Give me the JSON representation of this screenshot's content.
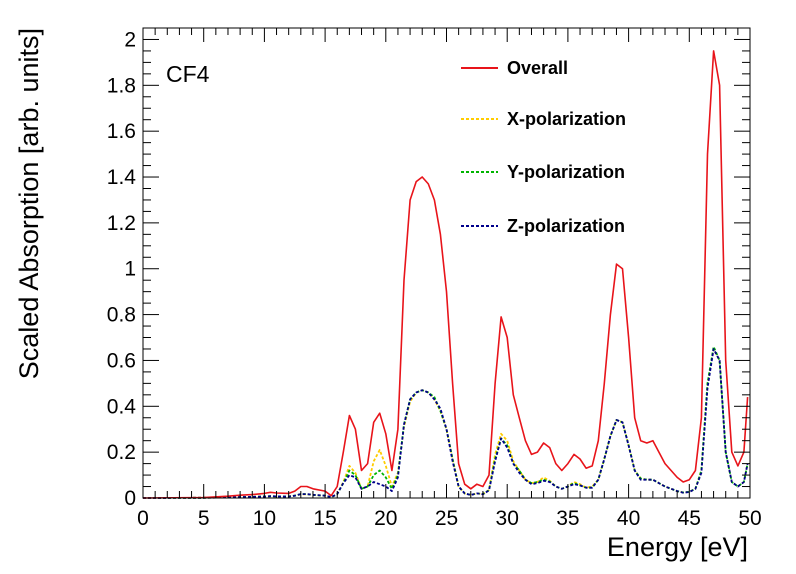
{
  "chart_data": {
    "type": "line",
    "title": "",
    "annotation": "CF4",
    "xlabel": "Energy [eV]",
    "ylabel": "Scaled Absorption [arb. units]",
    "xlim": [
      0,
      50
    ],
    "ylim": [
      0,
      2.05
    ],
    "xticks": [
      0,
      5,
      10,
      15,
      20,
      25,
      30,
      35,
      40,
      45,
      50
    ],
    "xtick_labels": [
      "0",
      "5",
      "10",
      "15",
      "20",
      "25",
      "30",
      "35",
      "40",
      "45",
      "50"
    ],
    "yticks": [
      0,
      0.2,
      0.4,
      0.6,
      0.8,
      1,
      1.2,
      1.4,
      1.6,
      1.8,
      2
    ],
    "ytick_labels": [
      "0",
      "0.2",
      "0.4",
      "0.6",
      "0.8",
      "1",
      "1.2",
      "1.4",
      "1.6",
      "1.8",
      "2"
    ],
    "grid": false,
    "legend_position": "top-center",
    "series": [
      {
        "name": "Overall",
        "color": "#e8141a",
        "dashed": false,
        "x": [
          0,
          5,
          7,
          8,
          9,
          10,
          10.5,
          11,
          12,
          12.5,
          13,
          13.5,
          14,
          15,
          15.5,
          16,
          16.5,
          17,
          17.5,
          18,
          18.5,
          19,
          19.5,
          20,
          20.5,
          21,
          21.5,
          22,
          22.5,
          23,
          23.5,
          24,
          24.5,
          25,
          25.5,
          26,
          26.5,
          27,
          27.5,
          28,
          28.5,
          29,
          29.5,
          30,
          30.5,
          31,
          31.5,
          32,
          32.5,
          33,
          33.5,
          34,
          34.5,
          35,
          35.5,
          36,
          36.5,
          37,
          37.5,
          38,
          38.5,
          39,
          39.5,
          40,
          40.5,
          41,
          41.5,
          42,
          42.5,
          43,
          43.5,
          44,
          44.5,
          45,
          45.5,
          46,
          46.5,
          47,
          47.5,
          48,
          48.5,
          49,
          49.5,
          49.8
        ],
        "values": [
          0,
          0.002,
          0.008,
          0.012,
          0.015,
          0.02,
          0.025,
          0.022,
          0.02,
          0.03,
          0.05,
          0.05,
          0.04,
          0.03,
          0.01,
          0.05,
          0.2,
          0.36,
          0.3,
          0.12,
          0.15,
          0.33,
          0.37,
          0.28,
          0.12,
          0.3,
          0.95,
          1.3,
          1.38,
          1.4,
          1.37,
          1.3,
          1.15,
          0.9,
          0.5,
          0.15,
          0.06,
          0.04,
          0.06,
          0.05,
          0.1,
          0.5,
          0.79,
          0.7,
          0.45,
          0.35,
          0.25,
          0.19,
          0.2,
          0.24,
          0.22,
          0.15,
          0.12,
          0.15,
          0.19,
          0.17,
          0.13,
          0.14,
          0.25,
          0.5,
          0.8,
          1.02,
          1.0,
          0.7,
          0.35,
          0.25,
          0.24,
          0.25,
          0.2,
          0.15,
          0.12,
          0.09,
          0.07,
          0.08,
          0.12,
          0.35,
          1.5,
          1.95,
          1.8,
          0.6,
          0.2,
          0.14,
          0.2,
          0.44
        ]
      },
      {
        "name": "X-polarization",
        "color": "#ffcc00",
        "dashed": true,
        "x": [
          0,
          5,
          7,
          8,
          9,
          10,
          10.5,
          11,
          12,
          12.5,
          13,
          13.5,
          14,
          15,
          15.5,
          16,
          16.5,
          17,
          17.5,
          18,
          18.5,
          19,
          19.5,
          20,
          20.5,
          21,
          21.5,
          22,
          22.5,
          23,
          23.5,
          24,
          24.5,
          25,
          25.5,
          26,
          26.5,
          27,
          27.5,
          28,
          28.5,
          29,
          29.5,
          30,
          30.5,
          31,
          31.5,
          32,
          32.5,
          33,
          33.5,
          34,
          34.5,
          35,
          35.5,
          36,
          36.5,
          37,
          37.5,
          38,
          38.5,
          39,
          39.5,
          40,
          40.5,
          41,
          41.5,
          42,
          42.5,
          43,
          43.5,
          44,
          44.5,
          45,
          45.5,
          46,
          46.5,
          47,
          47.5,
          48,
          48.5,
          49,
          49.5,
          49.8
        ],
        "values": [
          0,
          0.001,
          0.003,
          0.004,
          0.005,
          0.007,
          0.008,
          0.007,
          0.007,
          0.01,
          0.016,
          0.016,
          0.013,
          0.01,
          0.003,
          0.016,
          0.07,
          0.14,
          0.11,
          0.04,
          0.05,
          0.16,
          0.21,
          0.14,
          0.05,
          0.11,
          0.31,
          0.42,
          0.46,
          0.47,
          0.46,
          0.43,
          0.38,
          0.3,
          0.17,
          0.05,
          0.02,
          0.013,
          0.02,
          0.017,
          0.035,
          0.19,
          0.28,
          0.25,
          0.16,
          0.12,
          0.08,
          0.065,
          0.07,
          0.09,
          0.075,
          0.05,
          0.04,
          0.05,
          0.07,
          0.06,
          0.045,
          0.05,
          0.08,
          0.17,
          0.27,
          0.34,
          0.33,
          0.23,
          0.12,
          0.085,
          0.08,
          0.08,
          0.065,
          0.05,
          0.04,
          0.03,
          0.024,
          0.027,
          0.04,
          0.12,
          0.5,
          0.65,
          0.6,
          0.2,
          0.07,
          0.05,
          0.07,
          0.15
        ]
      },
      {
        "name": "Y-polarization",
        "color": "#00b400",
        "dashed": true,
        "x": [
          0,
          5,
          7,
          8,
          9,
          10,
          10.5,
          11,
          12,
          12.5,
          13,
          13.5,
          14,
          15,
          15.5,
          16,
          16.5,
          17,
          17.5,
          18,
          18.5,
          19,
          19.5,
          20,
          20.5,
          21,
          21.5,
          22,
          22.5,
          23,
          23.5,
          24,
          24.5,
          25,
          25.5,
          26,
          26.5,
          27,
          27.5,
          28,
          28.5,
          29,
          29.5,
          30,
          30.5,
          31,
          31.5,
          32,
          32.5,
          33,
          33.5,
          34,
          34.5,
          35,
          35.5,
          36,
          36.5,
          37,
          37.5,
          38,
          38.5,
          39,
          39.5,
          40,
          40.5,
          41,
          41.5,
          42,
          42.5,
          43,
          43.5,
          44,
          44.5,
          45,
          45.5,
          46,
          46.5,
          47,
          47.5,
          48,
          48.5,
          49,
          49.5,
          49.8
        ],
        "values": [
          0,
          0.001,
          0.003,
          0.004,
          0.005,
          0.007,
          0.008,
          0.007,
          0.007,
          0.01,
          0.017,
          0.017,
          0.013,
          0.01,
          0.003,
          0.017,
          0.065,
          0.12,
          0.1,
          0.04,
          0.05,
          0.1,
          0.12,
          0.09,
          0.04,
          0.1,
          0.32,
          0.43,
          0.46,
          0.47,
          0.46,
          0.44,
          0.38,
          0.3,
          0.17,
          0.05,
          0.02,
          0.013,
          0.02,
          0.017,
          0.034,
          0.17,
          0.26,
          0.23,
          0.15,
          0.12,
          0.08,
          0.065,
          0.07,
          0.08,
          0.072,
          0.05,
          0.04,
          0.05,
          0.065,
          0.055,
          0.045,
          0.045,
          0.08,
          0.17,
          0.27,
          0.34,
          0.33,
          0.23,
          0.12,
          0.085,
          0.08,
          0.08,
          0.065,
          0.05,
          0.04,
          0.03,
          0.024,
          0.027,
          0.04,
          0.12,
          0.5,
          0.66,
          0.6,
          0.2,
          0.07,
          0.05,
          0.07,
          0.15
        ]
      },
      {
        "name": "Z-polarization",
        "color": "#00008b",
        "dashed": true,
        "x": [
          0,
          5,
          7,
          8,
          9,
          10,
          10.5,
          11,
          12,
          12.5,
          13,
          13.5,
          14,
          15,
          15.5,
          16,
          16.5,
          17,
          17.5,
          18,
          18.5,
          19,
          19.5,
          20,
          20.5,
          21,
          21.5,
          22,
          22.5,
          23,
          23.5,
          24,
          24.5,
          25,
          25.5,
          26,
          26.5,
          27,
          27.5,
          28,
          28.5,
          29,
          29.5,
          30,
          30.5,
          31,
          31.5,
          32,
          32.5,
          33,
          33.5,
          34,
          34.5,
          35,
          35.5,
          36,
          36.5,
          37,
          37.5,
          38,
          38.5,
          39,
          39.5,
          40,
          40.5,
          41,
          41.5,
          42,
          42.5,
          43,
          43.5,
          44,
          44.5,
          45,
          45.5,
          46,
          46.5,
          47,
          47.5,
          48,
          48.5,
          49,
          49.5,
          49.8
        ],
        "values": [
          0,
          0.001,
          0.002,
          0.004,
          0.005,
          0.006,
          0.008,
          0.007,
          0.006,
          0.01,
          0.017,
          0.017,
          0.014,
          0.01,
          0.004,
          0.017,
          0.065,
          0.1,
          0.09,
          0.04,
          0.05,
          0.07,
          0.06,
          0.05,
          0.03,
          0.09,
          0.32,
          0.43,
          0.46,
          0.47,
          0.46,
          0.43,
          0.39,
          0.3,
          0.16,
          0.05,
          0.02,
          0.013,
          0.02,
          0.016,
          0.033,
          0.16,
          0.26,
          0.22,
          0.15,
          0.11,
          0.08,
          0.06,
          0.065,
          0.075,
          0.07,
          0.05,
          0.04,
          0.05,
          0.06,
          0.055,
          0.045,
          0.045,
          0.08,
          0.17,
          0.27,
          0.34,
          0.33,
          0.23,
          0.12,
          0.08,
          0.08,
          0.08,
          0.065,
          0.05,
          0.04,
          0.03,
          0.023,
          0.026,
          0.04,
          0.11,
          0.48,
          0.65,
          0.6,
          0.2,
          0.07,
          0.05,
          0.07,
          0.15
        ]
      }
    ]
  }
}
